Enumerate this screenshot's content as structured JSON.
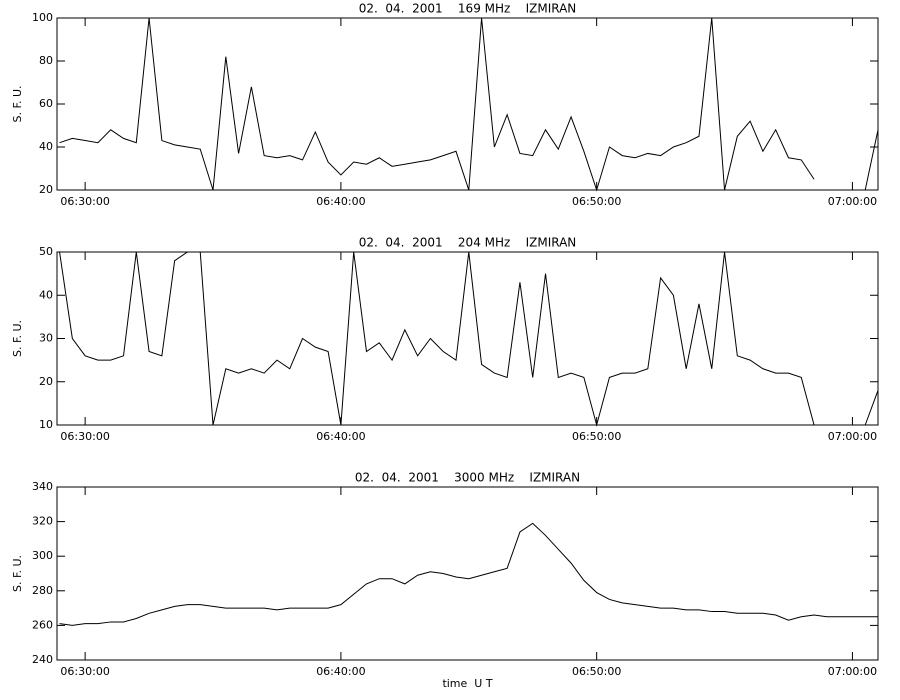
{
  "chart_data": [
    {
      "type": "line",
      "title": "02.  04.  2001    169 MHz    IZMIRAN",
      "y_label": "S. F. U.",
      "color": "#000000",
      "xlim": [
        "06:28:54",
        "07:01:00"
      ],
      "xticks": [
        "06:30:00",
        "06:40:00",
        "06:50:00",
        "07:00:00"
      ],
      "ylim": [
        20,
        100
      ],
      "yticks": [
        20,
        40,
        60,
        80,
        100
      ],
      "x": [
        "06:29:00",
        "06:29:30",
        "06:30:00",
        "06:30:30",
        "06:31:00",
        "06:31:30",
        "06:32:00",
        "06:32:30",
        "06:33:00",
        "06:33:30",
        "06:34:00",
        "06:34:30",
        "06:35:00",
        "06:35:30",
        "06:36:00",
        "06:36:30",
        "06:37:00",
        "06:37:30",
        "06:38:00",
        "06:38:30",
        "06:39:00",
        "06:39:30",
        "06:40:00",
        "06:40:30",
        "06:41:00",
        "06:41:30",
        "06:42:00",
        "06:42:30",
        "06:43:00",
        "06:43:30",
        "06:44:00",
        "06:44:30",
        "06:45:00",
        "06:45:30",
        "06:46:00",
        "06:46:30",
        "06:47:00",
        "06:47:30",
        "06:48:00",
        "06:48:30",
        "06:49:00",
        "06:49:30",
        "06:50:00",
        "06:50:30",
        "06:51:00",
        "06:51:30",
        "06:52:00",
        "06:52:30",
        "06:53:00",
        "06:53:30",
        "06:54:00",
        "06:54:30",
        "06:55:00",
        "06:55:30",
        "06:56:00",
        "06:56:30",
        "06:57:00",
        "06:57:30",
        "06:58:00",
        "06:58:30",
        "06:59:00",
        "06:59:30",
        "07:00:00",
        "07:00:30",
        "07:01:00"
      ],
      "values": [
        42,
        44,
        43,
        42,
        48,
        44,
        42,
        100,
        43,
        41,
        40,
        39,
        20,
        82,
        37,
        68,
        36,
        35,
        36,
        34,
        47,
        33,
        27,
        33,
        32,
        35,
        31,
        32,
        33,
        34,
        36,
        38,
        20,
        100,
        40,
        55,
        37,
        36,
        48,
        39,
        54,
        38,
        20,
        40,
        36,
        35,
        37,
        36,
        40,
        42,
        45,
        100,
        20,
        45,
        52,
        38,
        48,
        35,
        34,
        25,
        null,
        null,
        null,
        20,
        48
      ]
    },
    {
      "type": "line",
      "title": "02.  04.  2001    204 MHz    IZMIRAN",
      "y_label": "S. F. U.",
      "color": "#000000",
      "xlim": [
        "06:28:54",
        "07:01:00"
      ],
      "xticks": [
        "06:30:00",
        "06:40:00",
        "06:50:00",
        "07:00:00"
      ],
      "ylim": [
        10,
        50
      ],
      "yticks": [
        10,
        20,
        30,
        40,
        50
      ],
      "x": [
        "06:29:00",
        "06:29:30",
        "06:30:00",
        "06:30:30",
        "06:31:00",
        "06:31:30",
        "06:32:00",
        "06:32:30",
        "06:33:00",
        "06:33:30",
        "06:34:00",
        "06:34:30",
        "06:35:00",
        "06:35:30",
        "06:36:00",
        "06:36:30",
        "06:37:00",
        "06:37:30",
        "06:38:00",
        "06:38:30",
        "06:39:00",
        "06:39:30",
        "06:40:00",
        "06:40:30",
        "06:41:00",
        "06:41:30",
        "06:42:00",
        "06:42:30",
        "06:43:00",
        "06:43:30",
        "06:44:00",
        "06:44:30",
        "06:45:00",
        "06:45:30",
        "06:46:00",
        "06:46:30",
        "06:47:00",
        "06:47:30",
        "06:48:00",
        "06:48:30",
        "06:49:00",
        "06:49:30",
        "06:50:00",
        "06:50:30",
        "06:51:00",
        "06:51:30",
        "06:52:00",
        "06:52:30",
        "06:53:00",
        "06:53:30",
        "06:54:00",
        "06:54:30",
        "06:55:00",
        "06:55:30",
        "06:56:00",
        "06:56:30",
        "06:57:00",
        "06:57:30",
        "06:58:00",
        "06:58:30",
        "06:59:00",
        "06:59:30",
        "07:00:00",
        "07:00:30",
        "07:01:00"
      ],
      "values": [
        50,
        30,
        26,
        25,
        25,
        26,
        50,
        27,
        26,
        48,
        50,
        50,
        10,
        23,
        22,
        23,
        22,
        25,
        23,
        30,
        28,
        27,
        10,
        50,
        27,
        29,
        25,
        32,
        26,
        30,
        27,
        25,
        50,
        24,
        22,
        21,
        43,
        21,
        45,
        21,
        22,
        21,
        10,
        21,
        22,
        22,
        23,
        44,
        40,
        23,
        38,
        23,
        50,
        26,
        25,
        23,
        22,
        22,
        21,
        10,
        null,
        null,
        null,
        10,
        18
      ]
    },
    {
      "type": "line",
      "title": "02.  04.  2001    3000 MHz    IZMIRAN",
      "y_label": "S. F. U.",
      "x_label": "time  U T",
      "color": "#000000",
      "xlim": [
        "06:28:54",
        "07:01:00"
      ],
      "xticks": [
        "06:30:00",
        "06:40:00",
        "06:50:00",
        "07:00:00"
      ],
      "ylim": [
        240,
        340
      ],
      "yticks": [
        240,
        260,
        280,
        300,
        320,
        340
      ],
      "x": [
        "06:29:00",
        "06:29:30",
        "06:30:00",
        "06:30:30",
        "06:31:00",
        "06:31:30",
        "06:32:00",
        "06:32:30",
        "06:33:00",
        "06:33:30",
        "06:34:00",
        "06:34:30",
        "06:35:00",
        "06:35:30",
        "06:36:00",
        "06:36:30",
        "06:37:00",
        "06:37:30",
        "06:38:00",
        "06:38:30",
        "06:39:00",
        "06:39:30",
        "06:40:00",
        "06:40:30",
        "06:41:00",
        "06:41:30",
        "06:42:00",
        "06:42:30",
        "06:43:00",
        "06:43:30",
        "06:44:00",
        "06:44:30",
        "06:45:00",
        "06:45:30",
        "06:46:00",
        "06:46:30",
        "06:47:00",
        "06:47:30",
        "06:48:00",
        "06:48:30",
        "06:49:00",
        "06:49:30",
        "06:50:00",
        "06:50:30",
        "06:51:00",
        "06:51:30",
        "06:52:00",
        "06:52:30",
        "06:53:00",
        "06:53:30",
        "06:54:00",
        "06:54:30",
        "06:55:00",
        "06:55:30",
        "06:56:00",
        "06:56:30",
        "06:57:00",
        "06:57:30",
        "06:58:00",
        "06:58:30",
        "06:59:00",
        "06:59:30",
        "07:00:00",
        "07:00:30",
        "07:01:00"
      ],
      "values": [
        261,
        260,
        261,
        261,
        262,
        262,
        264,
        267,
        269,
        271,
        272,
        272,
        271,
        270,
        270,
        270,
        270,
        269,
        270,
        270,
        270,
        270,
        272,
        278,
        284,
        287,
        287,
        284,
        289,
        291,
        290,
        288,
        287,
        289,
        291,
        293,
        314,
        319,
        312,
        304,
        296,
        286,
        279,
        275,
        273,
        272,
        271,
        270,
        270,
        269,
        269,
        268,
        268,
        267,
        267,
        267,
        266,
        263,
        265,
        266,
        265,
        265,
        265,
        265,
        265
      ]
    }
  ]
}
